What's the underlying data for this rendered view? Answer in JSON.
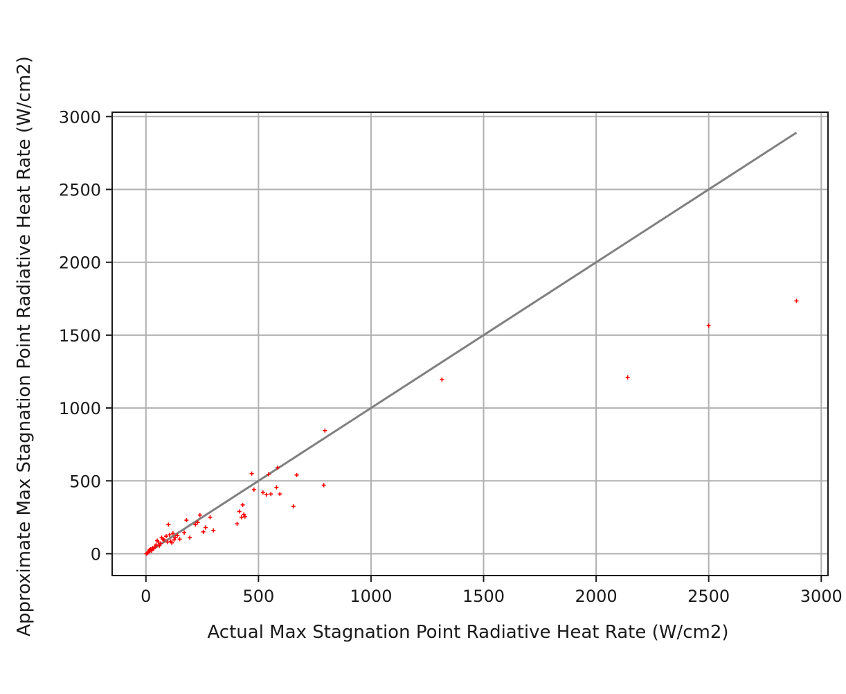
{
  "chart_data": {
    "type": "scatter",
    "title": "",
    "xlabel": "Actual Max Stagnation Point Radiative Heat Rate (W/cm2)",
    "ylabel": "Approximate Max Stagnation Point Radiative Heat Rate (W/cm2)",
    "xlim": [
      -150,
      3030
    ],
    "ylim": [
      -150,
      3030
    ],
    "xticks": [
      0,
      500,
      1000,
      1500,
      2000,
      2500,
      3000
    ],
    "yticks": [
      0,
      500,
      1000,
      1500,
      2000,
      2500,
      3000
    ],
    "xtick_labels": [
      "0",
      "500",
      "1000",
      "1500",
      "2000",
      "2500",
      "3000"
    ],
    "ytick_labels": [
      "0",
      "500",
      "1000",
      "1500",
      "2000",
      "2500",
      "3000"
    ],
    "grid": true,
    "reference_line": {
      "type": "line",
      "color": "#808080",
      "x": [
        0,
        2890
      ],
      "y": [
        0,
        2890
      ]
    },
    "series": [
      {
        "marker": "+",
        "color": "#ff0000",
        "points": [
          [
            2,
            0
          ],
          [
            8,
            5
          ],
          [
            12,
            12
          ],
          [
            15,
            25
          ],
          [
            20,
            30
          ],
          [
            25,
            20
          ],
          [
            30,
            40
          ],
          [
            35,
            35
          ],
          [
            40,
            45
          ],
          [
            45,
            60
          ],
          [
            50,
            90
          ],
          [
            55,
            80
          ],
          [
            60,
            55
          ],
          [
            65,
            70
          ],
          [
            70,
            110
          ],
          [
            75,
            100
          ],
          [
            80,
            95
          ],
          [
            90,
            120
          ],
          [
            95,
            80
          ],
          [
            100,
            200
          ],
          [
            105,
            130
          ],
          [
            110,
            85
          ],
          [
            115,
            75
          ],
          [
            120,
            140
          ],
          [
            125,
            95
          ],
          [
            130,
            110
          ],
          [
            140,
            125
          ],
          [
            150,
            100
          ],
          [
            170,
            145
          ],
          [
            180,
            230
          ],
          [
            195,
            110
          ],
          [
            220,
            200
          ],
          [
            230,
            215
          ],
          [
            240,
            265
          ],
          [
            255,
            150
          ],
          [
            265,
            180
          ],
          [
            285,
            250
          ],
          [
            300,
            160
          ],
          [
            405,
            205
          ],
          [
            415,
            290
          ],
          [
            425,
            250
          ],
          [
            430,
            335
          ],
          [
            435,
            270
          ],
          [
            440,
            255
          ],
          [
            470,
            550
          ],
          [
            480,
            440
          ],
          [
            520,
            420
          ],
          [
            535,
            405
          ],
          [
            545,
            545
          ],
          [
            555,
            410
          ],
          [
            585,
            590
          ],
          [
            580,
            455
          ],
          [
            595,
            410
          ],
          [
            655,
            325
          ],
          [
            670,
            540
          ],
          [
            790,
            470
          ],
          [
            795,
            845
          ],
          [
            1315,
            1195
          ],
          [
            2140,
            1210
          ],
          [
            2500,
            1565
          ],
          [
            2890,
            1735
          ]
        ]
      }
    ]
  }
}
